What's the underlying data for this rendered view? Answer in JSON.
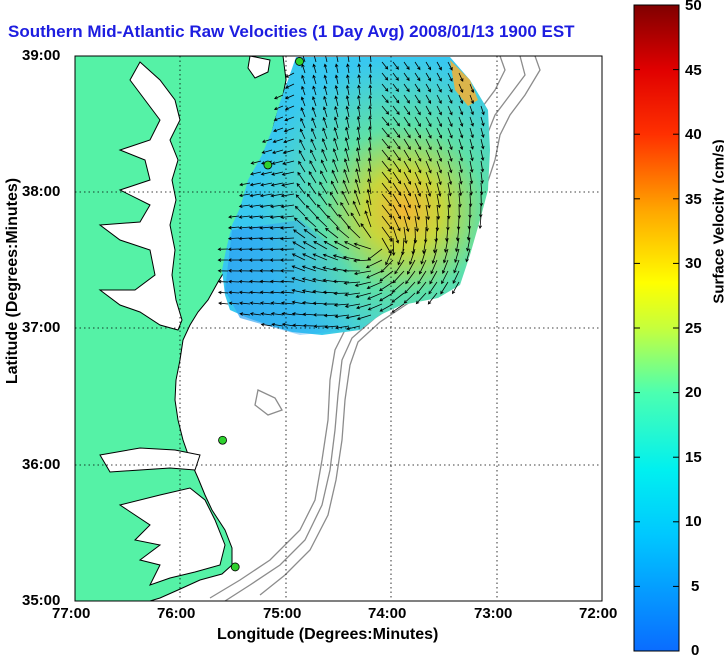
{
  "title": "Southern Mid-Atlantic Raw Velocities (1 Day Avg) 2008/01/13 1900 EST",
  "axes": {
    "xlabel": "Longitude (Degrees:Minutes)",
    "ylabel": "Latitude (Degrees:Minutes)",
    "x_ticks": [
      "77:00",
      "76:00",
      "75:00",
      "74:00",
      "73:00",
      "72:00"
    ],
    "y_ticks": [
      "39:00",
      "38:00",
      "37:00",
      "36:00",
      "35:00"
    ],
    "x_range_deg_west": [
      77,
      72
    ],
    "y_range_deg_north": [
      35,
      39
    ],
    "grid": "dotted"
  },
  "colorbar": {
    "label": "Surface Velocity (cm/s)",
    "ticks": [
      "50",
      "45",
      "40",
      "35",
      "30",
      "25",
      "20",
      "15",
      "10",
      "5",
      "0"
    ],
    "range": [
      0,
      50
    ]
  },
  "colors": {
    "land": "#55f2a6",
    "coastline": "#000000",
    "bathymetry": "#8c8c8c",
    "title": "#1d1de0",
    "site_marker": "#2fd12f"
  },
  "sites": [
    {
      "lon": -74.87,
      "lat": 38.96
    },
    {
      "lon": -75.17,
      "lat": 38.2
    },
    {
      "lon": -75.6,
      "lat": 36.18
    },
    {
      "lon": -75.48,
      "lat": 35.25
    }
  ]
}
